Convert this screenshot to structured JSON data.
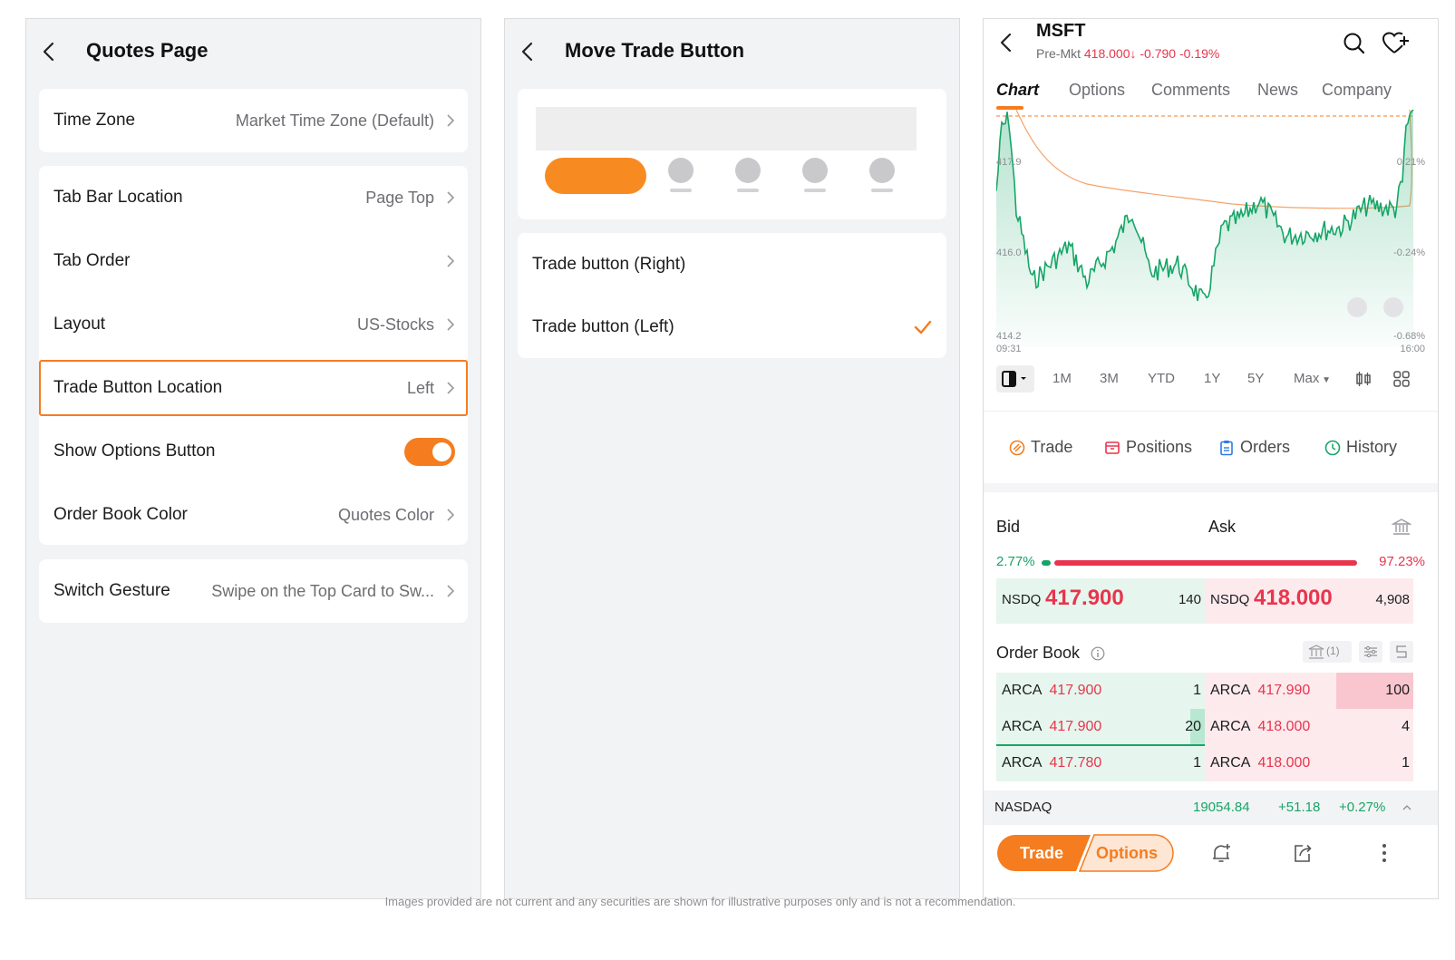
{
  "panel1": {
    "title": "Quotes Page",
    "rows": [
      {
        "label": "Time Zone",
        "value": "Market Time Zone (Default)"
      },
      {
        "label": "Tab Bar Location",
        "value": "Page Top"
      },
      {
        "label": "Tab Order",
        "value": ""
      },
      {
        "label": "Layout",
        "value": "US-Stocks"
      },
      {
        "label": "Trade Button Location",
        "value": "Left"
      },
      {
        "label": "Show Options Button",
        "value": ""
      },
      {
        "label": "Order Book Color",
        "value": "Quotes Color"
      },
      {
        "label": "Switch Gesture",
        "value": "Swipe on the Top Card to Sw..."
      }
    ],
    "show_options_enabled": true
  },
  "panel2": {
    "title": "Move Trade Button",
    "options": [
      {
        "label": "Trade button (Right)",
        "selected": false
      },
      {
        "label": "Trade button (Left)",
        "selected": true
      }
    ]
  },
  "panel3": {
    "ticker": "MSFT",
    "premarket_label": "Pre-Mkt",
    "premarket_price": "418.000",
    "premarket_change": "-0.790",
    "premarket_pct": "-0.19%",
    "tabs": [
      "Chart",
      "Options",
      "Comments",
      "News",
      "Company"
    ],
    "chart": {
      "y_left": [
        "417.9",
        "416.0",
        "414.2"
      ],
      "y_right": [
        "0.21%",
        "-0.24%",
        "-0.68%"
      ],
      "x_start": "09:31",
      "x_end": "16:00"
    },
    "ranges": [
      "1M",
      "3M",
      "YTD",
      "1Y",
      "5Y",
      "Max"
    ],
    "actions": [
      "Trade",
      "Positions",
      "Orders",
      "History"
    ],
    "bid_label": "Bid",
    "ask_label": "Ask",
    "bid_pct": "2.77%",
    "ask_pct": "97.23%",
    "bid_exchange": "NSDQ",
    "bid_price": "417.900",
    "bid_size": "140",
    "ask_exchange": "NSDQ",
    "ask_price": "418.000",
    "ask_size": "4,908",
    "order_book_label": "Order Book",
    "order_book_count": "(1)",
    "order_book": [
      {
        "bid_ex": "ARCA",
        "bid_pr": "417.900",
        "bid_q": "1",
        "ask_ex": "ARCA",
        "ask_pr": "417.990",
        "ask_q": "100"
      },
      {
        "bid_ex": "ARCA",
        "bid_pr": "417.900",
        "bid_q": "20",
        "ask_ex": "ARCA",
        "ask_pr": "418.000",
        "ask_q": "4"
      },
      {
        "bid_ex": "ARCA",
        "bid_pr": "417.780",
        "bid_q": "1",
        "ask_ex": "ARCA",
        "ask_pr": "418.000",
        "ask_q": "1"
      }
    ],
    "index_name": "NASDAQ",
    "index_value": "19054.84",
    "index_change": "+51.18",
    "index_pct": "+0.27%",
    "trade_label": "Trade",
    "options_label": "Options"
  },
  "disclaimer": "Images provided are not current and any securities are shown for illustrative purposes only and is not a recommendation.",
  "colors": {
    "accent": "#f57c1f",
    "up": "#16a567",
    "down": "#e8354d"
  }
}
